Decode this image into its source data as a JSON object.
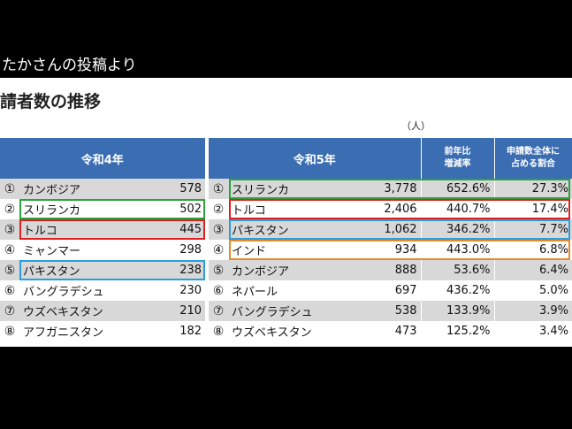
{
  "caption": "たかさんの投稿より",
  "title": "請者数の推移",
  "unit": "（人）",
  "left_table": {
    "header": "令和4年",
    "rows": [
      {
        "num": "①",
        "name": "カンボジア",
        "value": "578"
      },
      {
        "num": "②",
        "name": "スリランカ",
        "value": "502"
      },
      {
        "num": "③",
        "name": "トルコ",
        "value": "445"
      },
      {
        "num": "④",
        "name": "ミャンマー",
        "value": "298"
      },
      {
        "num": "⑤",
        "name": "パキスタン",
        "value": "238"
      },
      {
        "num": "⑥",
        "name": "バングラデシュ",
        "value": "230"
      },
      {
        "num": "⑦",
        "name": "ウズベキスタン",
        "value": "210"
      },
      {
        "num": "⑧",
        "name": "アフガニスタン",
        "value": "182"
      }
    ]
  },
  "right_table": {
    "header": "令和5年",
    "col_change_line1": "前年比",
    "col_change_line2": "増減率",
    "col_share_line1": "申請数全体に",
    "col_share_line2": "占める割合",
    "rows": [
      {
        "num": "①",
        "name": "スリランカ",
        "value": "3,778",
        "change": "652.6%",
        "share": "27.3%"
      },
      {
        "num": "②",
        "name": "トルコ",
        "value": "2,406",
        "change": "440.7%",
        "share": "17.4%"
      },
      {
        "num": "③",
        "name": "パキスタン",
        "value": "1,062",
        "change": "346.2%",
        "share": "7.7%"
      },
      {
        "num": "④",
        "name": "インド",
        "value": "934",
        "change": "443.0%",
        "share": "6.8%"
      },
      {
        "num": "⑤",
        "name": "カンボジア",
        "value": "888",
        "change": "53.6%",
        "share": "6.4%"
      },
      {
        "num": "⑥",
        "name": "ネパール",
        "value": "697",
        "change": "436.2%",
        "share": "5.0%"
      },
      {
        "num": "⑦",
        "name": "バングラデシュ",
        "value": "538",
        "change": "133.9%",
        "share": "3.9%"
      },
      {
        "num": "⑧",
        "name": "ウズベキスタン",
        "value": "473",
        "change": "125.2%",
        "share": "3.4%"
      }
    ]
  },
  "highlight_colors": {
    "green": "#2ca33a",
    "red": "#e02020",
    "blue": "#2a9de0",
    "orange": "#e88a2a"
  }
}
